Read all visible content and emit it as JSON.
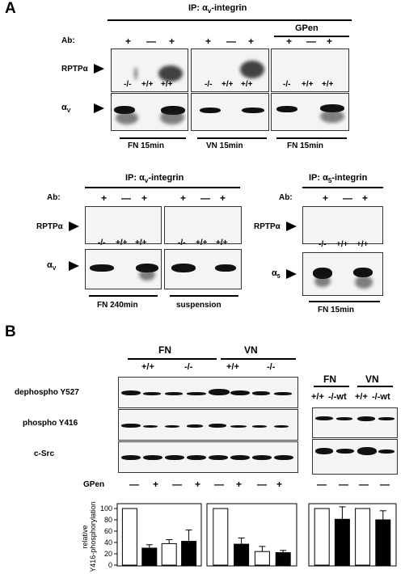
{
  "panel_letters": {
    "a": "A",
    "b": "B"
  },
  "a_top": {
    "ip_title": "IP: α",
    "ip_sub": "v",
    "ip_suffix": "-integrin",
    "gpen_label": "GPen",
    "ab_label": "Ab:",
    "ab_marks": [
      "+",
      "—",
      "+",
      "+",
      "—",
      "+",
      "+",
      "—",
      "+"
    ],
    "rptp_label": "RPTPα",
    "alpha_label": "α",
    "alpha_sub": "V",
    "genotypes": [
      "-/-",
      "+/+",
      "+/+",
      "-/-",
      "+/+",
      "+/+",
      "-/-",
      "+/+",
      "+/+"
    ],
    "conditions": [
      "FN 15min",
      "VN 15min",
      "FN 15min"
    ]
  },
  "a_bl": {
    "ip_title": "IP: α",
    "ip_sub": "v",
    "ip_suffix": "-integrin",
    "ab_label": "Ab:",
    "ab_marks": [
      "+",
      "—",
      "+",
      "+",
      "—",
      "+"
    ],
    "rptp_label": "RPTPα",
    "alpha_label": "α",
    "alpha_sub": "V",
    "genotypes": [
      "-/-",
      "+/+",
      "+/+",
      "-/-",
      "+/+",
      "+/+"
    ],
    "conditions": [
      "FN 240min",
      "suspension"
    ]
  },
  "a_br": {
    "ip_title": "IP: α",
    "ip_sub": "5",
    "ip_suffix": "-integrin",
    "ab_label": "Ab:",
    "ab_marks": [
      "+",
      "—",
      "+"
    ],
    "rptp_label": "RPTPα",
    "alpha_label": "α",
    "alpha_sub": "5",
    "genotypes": [
      "-/-",
      "+/+",
      "+/+"
    ],
    "condition": "FN 15min"
  },
  "b": {
    "fn_label": "FN",
    "vn_label": "VN",
    "genotypes_left": [
      "+/+",
      "-/-",
      "+/+",
      "-/-"
    ],
    "genotypes_right": [
      "+/+",
      "-/-wt",
      "+/+",
      "-/-wt"
    ],
    "row_labels": [
      "dephospho Y527",
      "phospho Y416",
      "c-Src"
    ],
    "gpen_label": "GPen",
    "gpen_marks": [
      "—",
      "+",
      "—",
      "+",
      "—",
      "+",
      "—",
      "+"
    ],
    "right_marks": [
      "—",
      "—",
      "—",
      "—"
    ]
  },
  "chart_data": [
    {
      "type": "bar",
      "ylabel": "relative Y416-phosphorylation",
      "ylim": [
        0,
        100
      ],
      "yticks": [
        0,
        20,
        40,
        60,
        80,
        100
      ],
      "categories": [
        "FN +/+ GPen−",
        "FN +/+ GPen+",
        "FN -/- GPen−",
        "FN -/- GPen+"
      ],
      "values": [
        100,
        30,
        38,
        42
      ],
      "errors": [
        0,
        6,
        7,
        20
      ],
      "fills": [
        "#ffffff",
        "#000000",
        "#ffffff",
        "#000000"
      ]
    },
    {
      "type": "bar",
      "categories": [
        "VN +/+ GPen−",
        "VN +/+ GPen+",
        "VN -/- GPen−",
        "VN -/- GPen+"
      ],
      "values": [
        100,
        37,
        24,
        22
      ],
      "errors": [
        0,
        11,
        9,
        4
      ],
      "fills": [
        "#ffffff",
        "#000000",
        "#ffffff",
        "#000000"
      ]
    },
    {
      "type": "bar",
      "categories": [
        "FN +/+",
        "FN -/-wt",
        "VN +/+",
        "VN -/-wt"
      ],
      "values": [
        100,
        81,
        100,
        80
      ],
      "errors": [
        0,
        22,
        0,
        16
      ],
      "fills": [
        "#ffffff",
        "#000000",
        "#ffffff",
        "#000000"
      ]
    }
  ]
}
